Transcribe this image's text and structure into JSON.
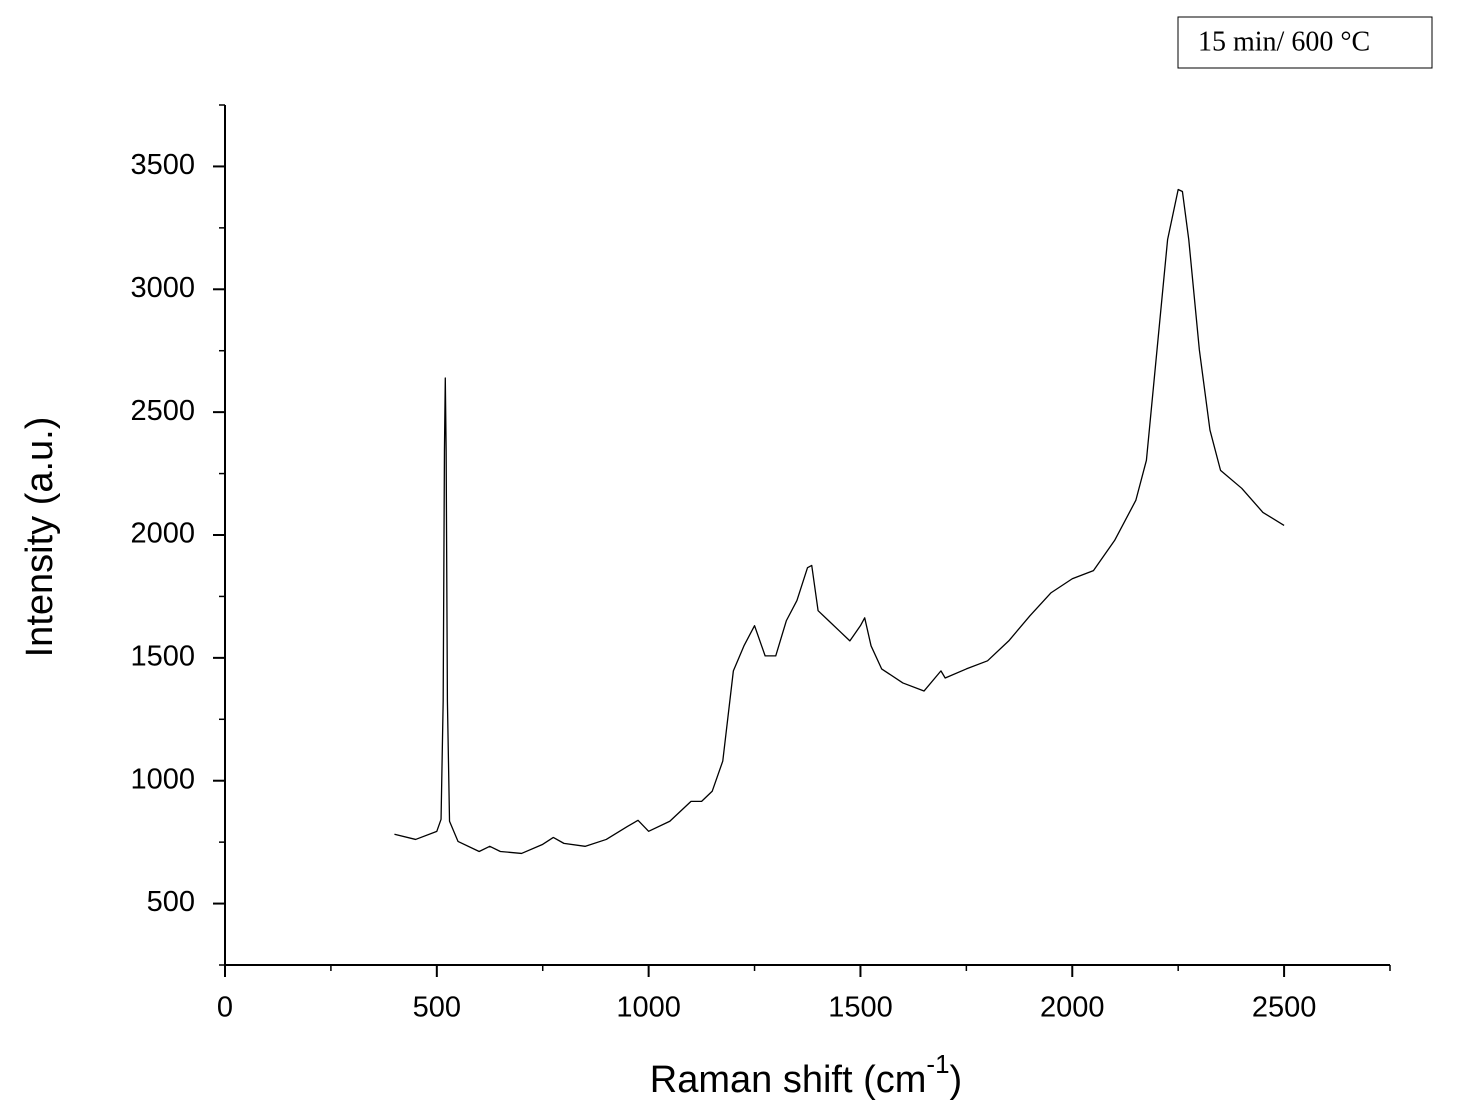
{
  "chart_data": {
    "type": "line",
    "xlabel": {
      "text": "Raman shift (cm",
      "sup": "-1",
      "end": ")"
    },
    "ylabel": "Intensity (a.u.)",
    "annotation": "15 min/ 600 °C",
    "color": "#000000",
    "x": [
      400,
      450,
      500,
      510,
      515,
      518,
      520,
      522,
      525,
      530,
      550,
      600,
      625,
      650,
      700,
      750,
      775,
      800,
      850,
      900,
      950,
      975,
      1000,
      1050,
      1100,
      1125,
      1150,
      1175,
      1200,
      1225,
      1250,
      1275,
      1300,
      1325,
      1350,
      1375,
      1385,
      1400,
      1425,
      1450,
      1475,
      1500,
      1510,
      1525,
      1550,
      1600,
      1650,
      1690,
      1700,
      1750,
      1800,
      1850,
      1900,
      1950,
      2000,
      2050,
      2100,
      2150,
      2175,
      2200,
      2225,
      2250,
      2260,
      2275,
      2300,
      2325,
      2350,
      2400,
      2450,
      2500
    ],
    "values": [
      782,
      761,
      794,
      843,
      1324,
      2345,
      2639,
      2345,
      1324,
      835,
      753,
      712,
      733,
      712,
      704,
      741,
      769,
      745,
      733,
      761,
      814,
      839,
      794,
      835,
      916,
      916,
      957,
      1080,
      1447,
      1549,
      1631,
      1508,
      1508,
      1651,
      1733,
      1867,
      1876,
      1692,
      1651,
      1610,
      1569,
      1631,
      1663,
      1549,
      1455,
      1398,
      1365,
      1447,
      1418,
      1455,
      1488,
      1569,
      1671,
      1765,
      1822,
      1855,
      1978,
      2141,
      2304,
      2753,
      3202,
      3406,
      3398,
      3202,
      2753,
      2427,
      2263,
      2190,
      2092,
      2039
    ],
    "xlim": [
      0,
      2750
    ],
    "xticks": [
      0,
      500,
      1000,
      1500,
      2000,
      2500
    ],
    "ylim": [
      250,
      3750
    ],
    "yticks": [
      500,
      1000,
      1500,
      2000,
      2500,
      3000,
      3500
    ]
  }
}
